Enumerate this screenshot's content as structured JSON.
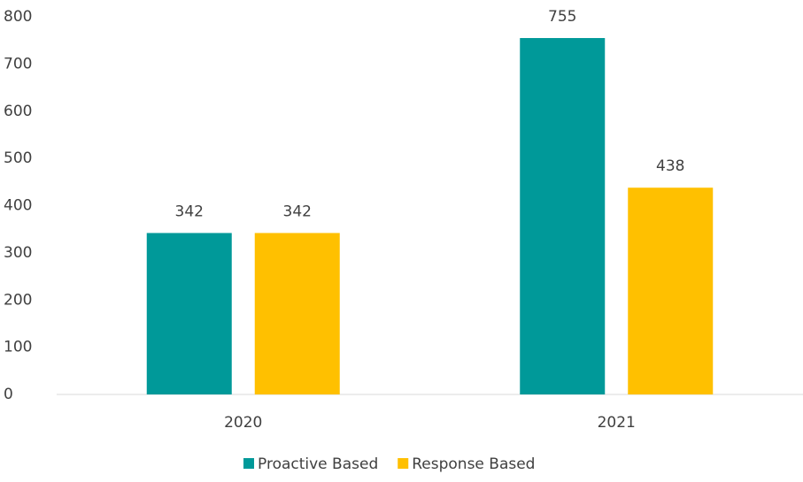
{
  "chart_data": {
    "type": "bar",
    "categories": [
      "2020",
      "2021"
    ],
    "series": [
      {
        "name": "Proactive Based",
        "color": "#009999",
        "values": [
          342,
          755
        ]
      },
      {
        "name": "Response Based",
        "color": "#ffc000",
        "values": [
          342,
          438
        ]
      }
    ],
    "ylim": [
      0,
      800
    ],
    "yticks": [
      0,
      100,
      200,
      300,
      400,
      500,
      600,
      700,
      800
    ],
    "grid": false,
    "legend": "bottom"
  }
}
